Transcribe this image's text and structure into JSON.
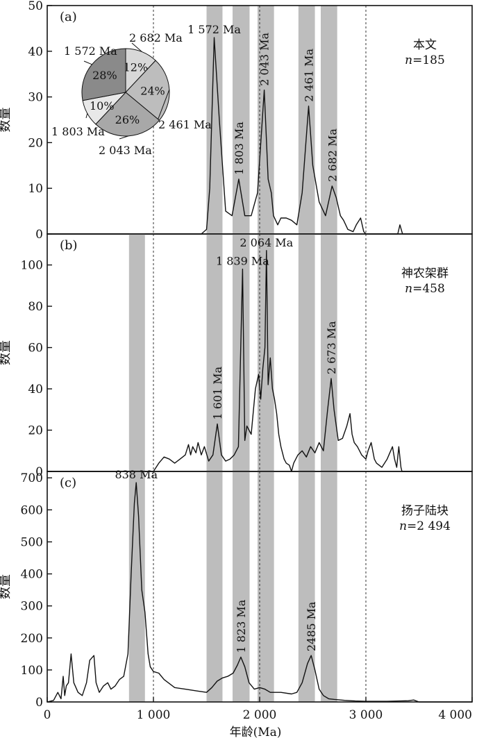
{
  "figure": {
    "xlabel": "年龄(Ma)",
    "xlim": [
      0,
      4000
    ],
    "xticks": [
      0,
      1000,
      2000,
      3000,
      4000
    ],
    "xtick_labels": [
      "0",
      "1 000",
      "2 000",
      "3 000",
      "4 000"
    ],
    "band_color": "#bdbdbd",
    "reference_lines": [
      1000,
      2000,
      3000
    ]
  },
  "chart_data": [
    {
      "type": "line",
      "panel_label": "(a)",
      "ylabel": "数量",
      "ylim": [
        0,
        50
      ],
      "yticks": [
        0,
        10,
        20,
        30,
        40,
        50
      ],
      "legend": {
        "name": "本文",
        "n_text": "n",
        "n_value": "=185"
      },
      "bands": [
        [
          1500,
          1650
        ],
        [
          1745,
          1905
        ],
        [
          1980,
          2135
        ],
        [
          2365,
          2520
        ],
        [
          2575,
          2730
        ]
      ],
      "peaks": [
        {
          "label": "1 572 Ma",
          "x": 1572,
          "y": 43,
          "rotated": false
        },
        {
          "label": "1 803 Ma",
          "x": 1803,
          "y": 12,
          "rotated": true
        },
        {
          "label": "2 043 Ma",
          "x": 2043,
          "y": 31.5,
          "rotated": true
        },
        {
          "label": "2 461 Ma",
          "x": 2461,
          "y": 28,
          "rotated": true
        },
        {
          "label": "2 682 Ma",
          "x": 2682,
          "y": 10.5,
          "rotated": true
        }
      ],
      "pie": {
        "slices": [
          {
            "label": "2 682 Ma",
            "percent": 12,
            "pct_text": "12%",
            "color": "#d8d8d8"
          },
          {
            "label": "2 461 Ma",
            "percent": 24,
            "pct_text": "24%",
            "color": "#bdbdbd"
          },
          {
            "label": "2 043 Ma",
            "percent": 26,
            "pct_text": "26%",
            "color": "#a8a8a8"
          },
          {
            "label": "1 803 Ma",
            "percent": 10,
            "pct_text": "10%",
            "color": "#e8e8e8"
          },
          {
            "label": "1 572 Ma",
            "percent": 28,
            "pct_text": "28%",
            "color": "#8a8a8a"
          }
        ]
      },
      "series": [
        {
          "x": [
            0,
            1450,
            1500,
            1530,
            1572,
            1620,
            1680,
            1740,
            1803,
            1860,
            1920,
            1980,
            2043,
            2080,
            2110,
            2130,
            2170,
            2200,
            2250,
            2300,
            2350,
            2400,
            2461,
            2500,
            2560,
            2620,
            2682,
            2720,
            2760,
            2790,
            2830,
            2880,
            2910,
            2950,
            2980,
            3000,
            3300,
            3320,
            3345,
            4000
          ],
          "y": [
            0,
            0,
            1,
            10,
            43,
            25,
            5,
            4,
            12,
            4,
            4,
            9,
            31.5,
            12,
            9,
            4,
            2,
            3.5,
            3.5,
            3,
            2,
            9,
            28,
            15,
            7,
            4,
            10.5,
            8,
            4,
            3,
            1,
            0.5,
            2,
            3.5,
            0.5,
            0,
            0,
            2,
            0,
            0
          ]
        }
      ]
    },
    {
      "type": "line",
      "panel_label": "(b)",
      "ylabel": "数量",
      "ylim": [
        0,
        115
      ],
      "yticks": [
        0,
        20,
        40,
        60,
        80,
        100
      ],
      "legend": {
        "name": "神农架群",
        "n_text": "n",
        "n_value": "=458"
      },
      "bands": [
        [
          770,
          920
        ],
        [
          1500,
          1650
        ],
        [
          1745,
          1905
        ],
        [
          1980,
          2135
        ],
        [
          2365,
          2520
        ],
        [
          2575,
          2730
        ]
      ],
      "peaks": [
        {
          "label": "1 601 Ma",
          "x": 1601,
          "y": 23,
          "rotated": true
        },
        {
          "label": "1 839 Ma",
          "x": 1839,
          "y": 98,
          "rotated": false
        },
        {
          "label": "2 064 Ma",
          "x": 2064,
          "y": 107,
          "rotated": false
        },
        {
          "label": "2 673 Ma",
          "x": 2673,
          "y": 45,
          "rotated": true
        }
      ],
      "series": [
        {
          "x": [
            0,
            1000,
            1050,
            1100,
            1150,
            1200,
            1250,
            1300,
            1330,
            1350,
            1370,
            1400,
            1420,
            1450,
            1480,
            1520,
            1560,
            1601,
            1640,
            1680,
            1720,
            1760,
            1800,
            1839,
            1860,
            1880,
            1920,
            1960,
            1990,
            2010,
            2030,
            2050,
            2064,
            2080,
            2100,
            2120,
            2140,
            2160,
            2180,
            2200,
            2230,
            2250,
            2280,
            2300,
            2320,
            2340,
            2360,
            2400,
            2440,
            2480,
            2520,
            2560,
            2600,
            2640,
            2673,
            2700,
            2740,
            2780,
            2820,
            2850,
            2870,
            2890,
            2920,
            2960,
            3000,
            3020,
            3050,
            3080,
            3100,
            3150,
            3200,
            3250,
            3270,
            3290,
            3310,
            3330,
            3340,
            4000
          ],
          "y": [
            0,
            0,
            4,
            7,
            6,
            4,
            6,
            8,
            13,
            8,
            12,
            9,
            14,
            8,
            12,
            5,
            8,
            23,
            8,
            5,
            6,
            8,
            12,
            98,
            15,
            22,
            18,
            40,
            47,
            35,
            50,
            60,
            107,
            42,
            55,
            40,
            35,
            28,
            18,
            12,
            6,
            4,
            3,
            0,
            4,
            6,
            8,
            10,
            7,
            12,
            9,
            14,
            10,
            30,
            45,
            30,
            15,
            16,
            22,
            28,
            18,
            14,
            12,
            8,
            6,
            10,
            14,
            6,
            4,
            2,
            6,
            12,
            6,
            2,
            12,
            2,
            0,
            0
          ]
        }
      ]
    },
    {
      "type": "line",
      "panel_label": "(c)",
      "ylabel": "数量",
      "ylim": [
        0,
        720
      ],
      "yticks": [
        0,
        100,
        200,
        300,
        400,
        500,
        600,
        700
      ],
      "legend": {
        "name": "扬子陆块",
        "n_text": "n",
        "n_value": "=2 494"
      },
      "bands": [
        [
          770,
          920
        ],
        [
          1500,
          1650
        ],
        [
          1745,
          1905
        ],
        [
          1980,
          2135
        ],
        [
          2365,
          2520
        ],
        [
          2575,
          2730
        ]
      ],
      "peaks": [
        {
          "label": "838 Ma",
          "x": 838,
          "y": 685,
          "rotated": false
        },
        {
          "label": "1 823 Ma",
          "x": 1823,
          "y": 140,
          "rotated": true
        },
        {
          "label": "2485 Ma",
          "x": 2485,
          "y": 145,
          "rotated": true
        }
      ],
      "series": [
        {
          "x": [
            0,
            60,
            100,
            130,
            150,
            165,
            180,
            200,
            225,
            250,
            290,
            330,
            370,
            400,
            440,
            460,
            490,
            530,
            570,
            600,
            640,
            680,
            720,
            760,
            790,
            820,
            838,
            860,
            890,
            920,
            950,
            970,
            1000,
            1050,
            1100,
            1200,
            1300,
            1400,
            1500,
            1550,
            1600,
            1650,
            1700,
            1750,
            1790,
            1823,
            1860,
            1900,
            1950,
            2000,
            2050,
            2100,
            2200,
            2300,
            2350,
            2400,
            2450,
            2485,
            2520,
            2560,
            2600,
            2650,
            2700,
            2800,
            2900,
            3000,
            3200,
            3400,
            3450,
            3500,
            4000
          ],
          "y": [
            0,
            5,
            30,
            10,
            80,
            20,
            50,
            60,
            150,
            60,
            30,
            20,
            60,
            130,
            145,
            60,
            30,
            50,
            60,
            40,
            50,
            70,
            80,
            150,
            400,
            620,
            685,
            580,
            350,
            280,
            150,
            110,
            95,
            90,
            70,
            45,
            40,
            35,
            30,
            45,
            65,
            75,
            80,
            90,
            115,
            140,
            110,
            60,
            40,
            45,
            40,
            30,
            30,
            25,
            30,
            60,
            120,
            145,
            100,
            40,
            20,
            10,
            8,
            5,
            3,
            2,
            2,
            4,
            6,
            0,
            0
          ]
        }
      ]
    }
  ]
}
